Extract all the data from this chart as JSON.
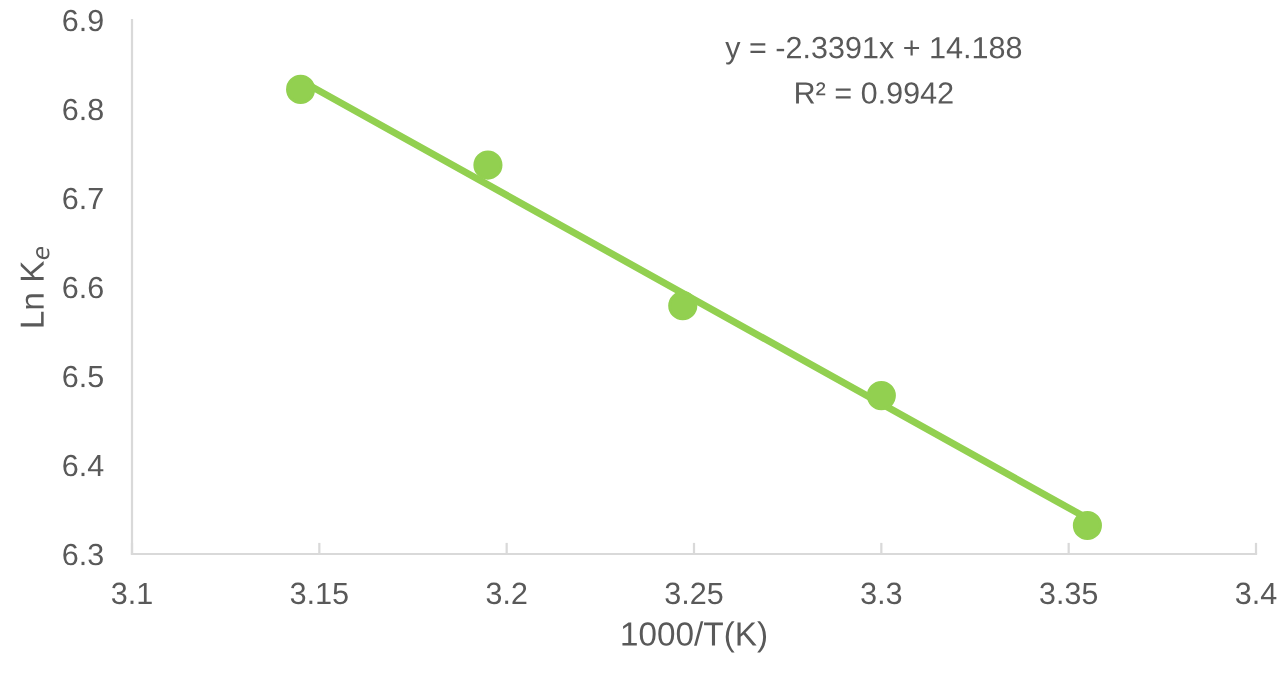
{
  "chart_data": {
    "type": "scatter",
    "xlabel": "1000/T(K)",
    "ylabel": "Ln K$_{e}$",
    "annotations": [
      "y = -2.3391x + 14.188",
      "R² = 0.9942"
    ],
    "series": [
      {
        "color": "#92d050",
        "marker": "circle",
        "x": [
          3.145,
          3.195,
          3.247,
          3.3,
          3.355
        ],
        "values": [
          6.822,
          6.737,
          6.579,
          6.478,
          6.332
        ]
      },
      {
        "type": "line",
        "color": "#92d050",
        "marker": "none",
        "line_style": "solid",
        "x": [
          3.145,
          3.355
        ],
        "values": [
          6.832,
          6.34
        ]
      }
    ],
    "xlim": [
      3.1,
      3.4
    ],
    "xticks": [
      3.1,
      3.15,
      3.2,
      3.25,
      3.3,
      3.35,
      3.4
    ],
    "ylim": [
      6.3,
      6.9
    ],
    "yticks": [
      6.3,
      6.4,
      6.5,
      6.6,
      6.7,
      6.8,
      6.9
    ],
    "grid": false,
    "legend": false
  }
}
